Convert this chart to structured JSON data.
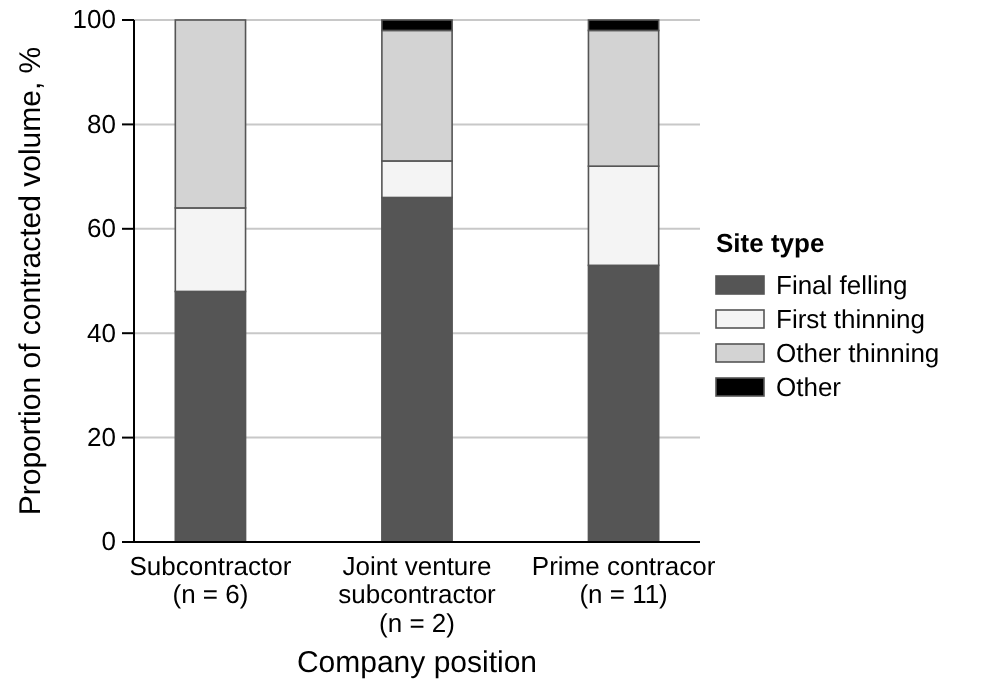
{
  "chart_data": {
    "type": "bar",
    "stacked": true,
    "xlabel": "Company position",
    "ylabel": "Proportion of contracted volume, %",
    "legend_title": "Site type",
    "legend": "right",
    "grid": "y",
    "categories": [
      "Subcontractor\n(n = 6)",
      "Joint venture\nsubcontractor\n(n = 2)",
      "Prime contracor\n(n = 11)"
    ],
    "series": [
      {
        "name": "Final felling",
        "color": "#555555",
        "values": [
          48,
          66,
          53
        ]
      },
      {
        "name": "First thinning",
        "color": "#f4f4f4",
        "values": [
          16,
          7,
          19
        ]
      },
      {
        "name": "Other thinning",
        "color": "#d3d3d3",
        "values": [
          36,
          25,
          26
        ]
      },
      {
        "name": "Other",
        "color": "#000000",
        "values": [
          0,
          2,
          2
        ]
      }
    ],
    "ylim": [
      0,
      100
    ],
    "yticks": [
      0,
      20,
      40,
      60,
      80,
      100
    ]
  }
}
